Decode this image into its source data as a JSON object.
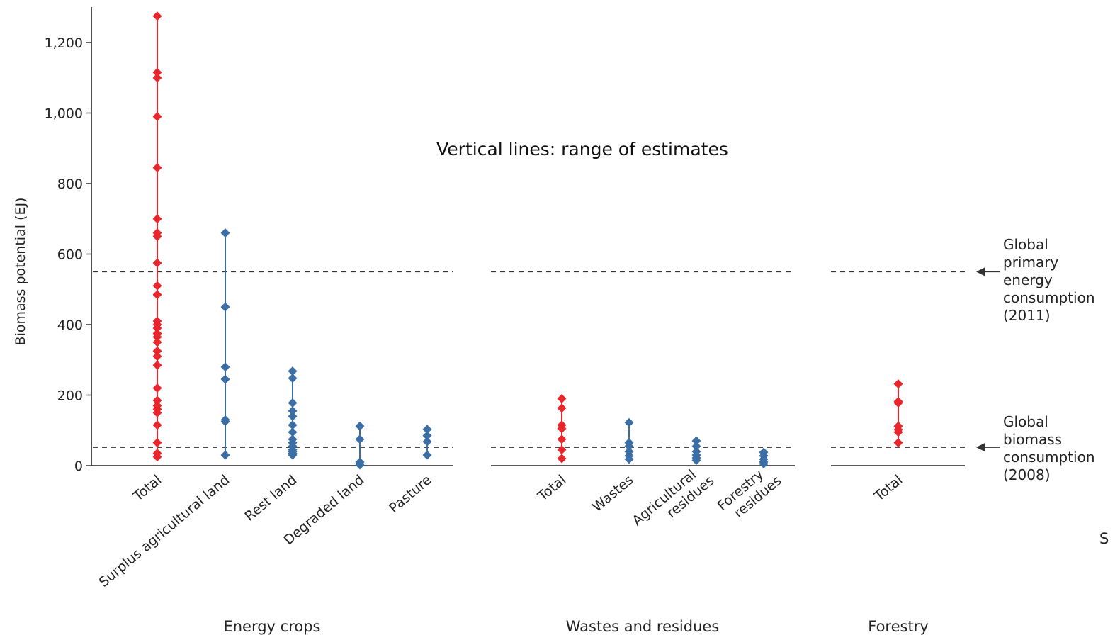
{
  "chart_data": {
    "type": "range-dot",
    "ylabel": "Biomass potential (EJ)",
    "ylim": [
      0,
      1300
    ],
    "y_ticks": [
      0,
      200,
      400,
      600,
      800,
      1000,
      1200
    ],
    "y_tick_labels": [
      "0",
      "200",
      "400",
      "600",
      "800",
      "1,000",
      "1,200"
    ],
    "annotation": "Vertical lines: range of estimates",
    "edge_text": "S",
    "colors": {
      "total": "#e8262b",
      "component": "#3a6ea5",
      "axis": "#222222",
      "reference": "#333333"
    },
    "groups": [
      {
        "name": "Energy crops",
        "categories": [
          {
            "label": "Total",
            "kind": "total",
            "values": [
              1275,
              1115,
              1100,
              990,
              845,
              700,
              660,
              650,
              575,
              510,
              485,
              410,
              400,
              390,
              375,
              365,
              350,
              325,
              310,
              285,
              220,
              185,
              170,
              160,
              150,
              115,
              65,
              35,
              25
            ]
          },
          {
            "label": "Surplus agricultural land",
            "kind": "component",
            "values": [
              660,
              450,
              280,
              245,
              130,
              125,
              30
            ]
          },
          {
            "label": "Rest land",
            "kind": "component",
            "values": [
              268,
              248,
              178,
              155,
              140,
              115,
              95,
              75,
              65,
              55,
              45,
              40,
              35,
              30
            ]
          },
          {
            "label": "Degraded land",
            "kind": "component",
            "values": [
              112,
              75,
              10,
              5,
              2
            ]
          },
          {
            "label": "Pasture",
            "kind": "component",
            "values": [
              103,
              85,
              68,
              30
            ]
          }
        ]
      },
      {
        "name": "Wastes and residues",
        "categories": [
          {
            "label": "Total",
            "kind": "total",
            "values": [
              190,
              163,
              115,
              105,
              75,
              45,
              20
            ]
          },
          {
            "label": "Wastes",
            "kind": "component",
            "values": [
              122,
              65,
              55,
              40,
              28,
              18
            ]
          },
          {
            "label": "Agricultural residues",
            "kind": "component",
            "values": [
              70,
              55,
              40,
              30,
              22,
              15
            ]
          },
          {
            "label": "Forestry residues",
            "kind": "component",
            "values": [
              38,
              28,
              18,
              10,
              5
            ]
          }
        ]
      },
      {
        "name": "Forestry",
        "categories": [
          {
            "label": "Total",
            "kind": "total",
            "values": [
              232,
              182,
              178,
              112,
              102,
              95,
              65
            ]
          }
        ]
      }
    ],
    "reference_lines": [
      {
        "value": 550,
        "label_lines": [
          "Global",
          "primary",
          "energy",
          "consumption",
          "(2011)"
        ]
      },
      {
        "value": 52,
        "label_lines": [
          "Global",
          "biomass",
          "consumption",
          "(2008)"
        ]
      }
    ]
  }
}
